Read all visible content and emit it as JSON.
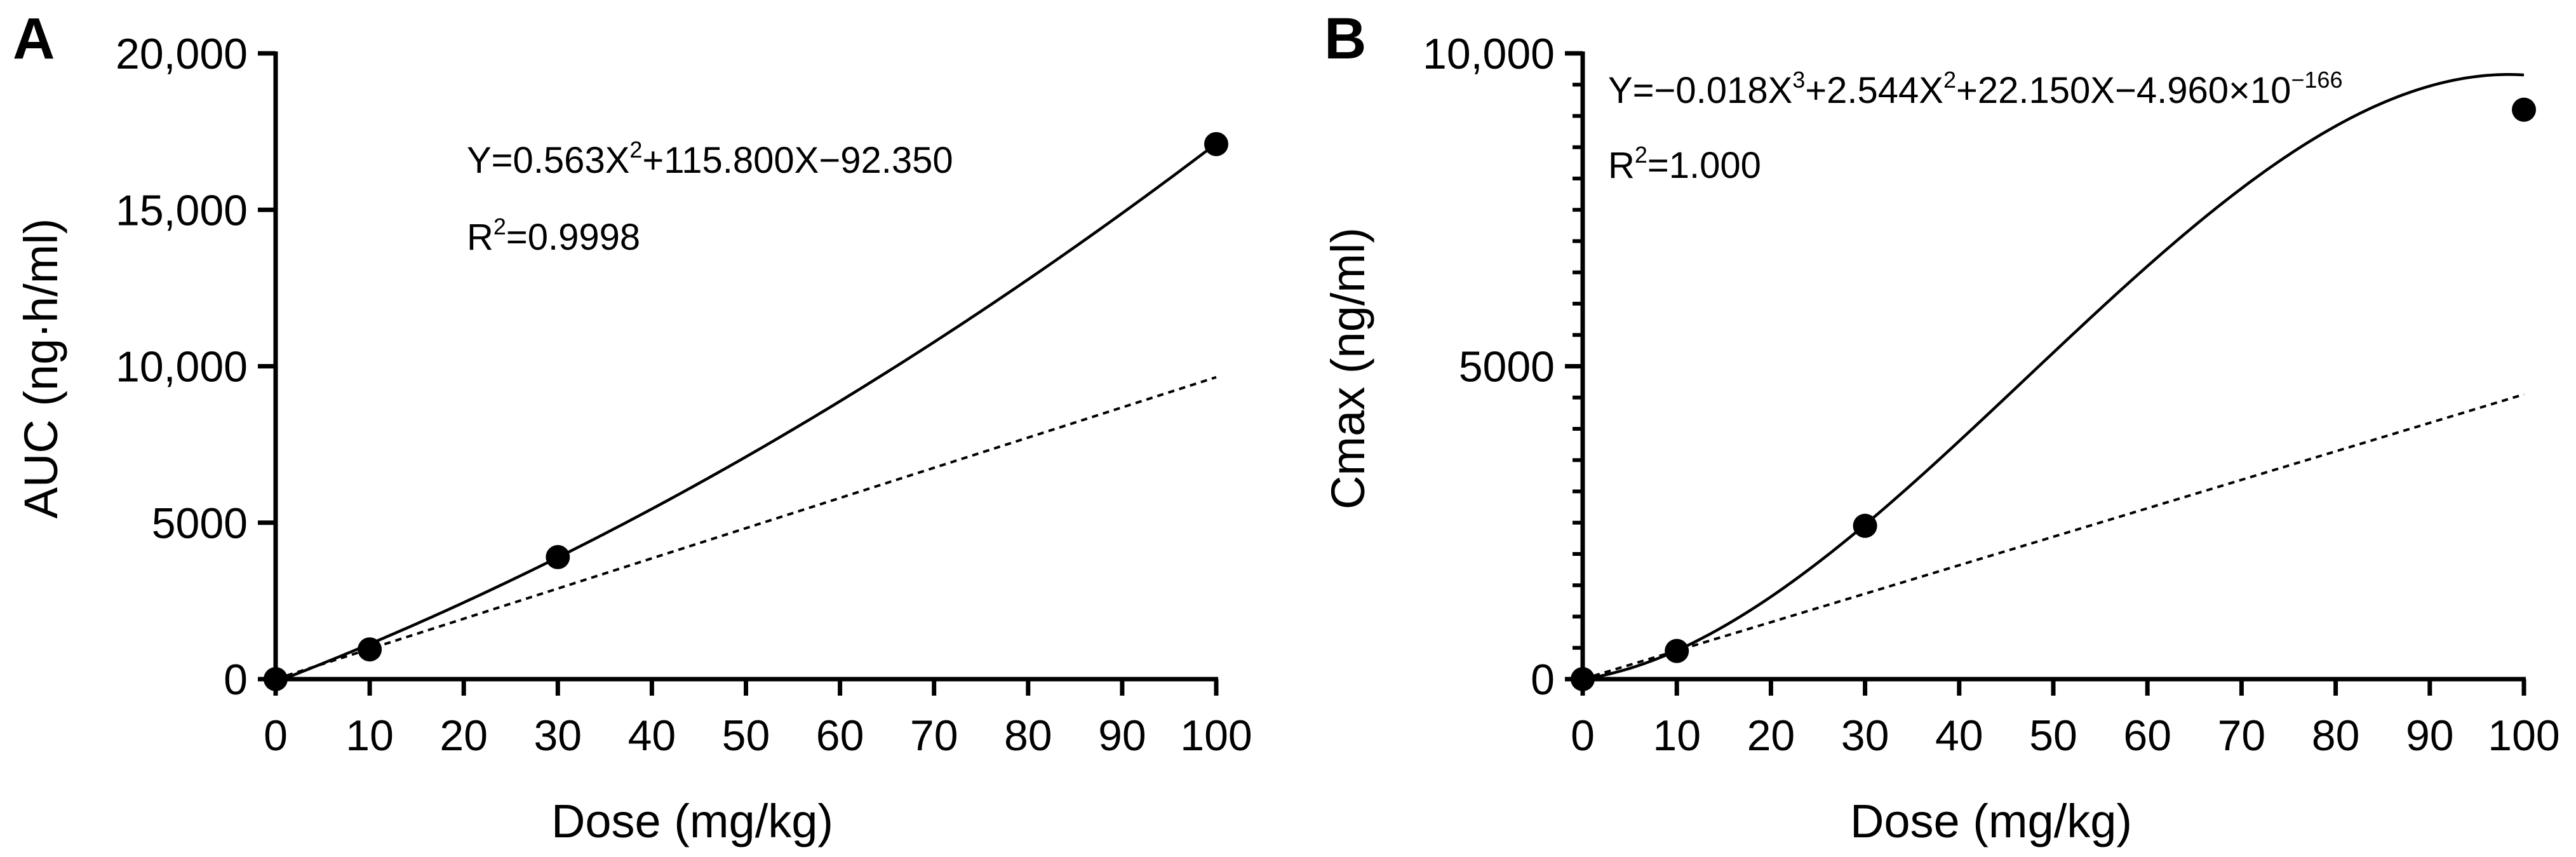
{
  "chart_data": [
    {
      "panel": "A",
      "type": "line",
      "xlabel": "Dose (mg/kg)",
      "ylabel": "AUC (ng·h/ml)",
      "xlim": [
        0,
        100
      ],
      "ylim": [
        0,
        20000
      ],
      "xticks": [
        0,
        10,
        20,
        30,
        40,
        50,
        60,
        70,
        80,
        90,
        100
      ],
      "xtick_labels": [
        "0",
        "10",
        "20",
        "30",
        "40",
        "50",
        "60",
        "70",
        "80",
        "90",
        "100"
      ],
      "yticks": [
        0,
        5000,
        10000,
        15000,
        20000
      ],
      "ytick_labels": [
        "0",
        "5000",
        "10,000",
        "15,000",
        "20,000"
      ],
      "y_minor_ticks": false,
      "grid": false,
      "points": [
        {
          "x": 0,
          "y": 0
        },
        {
          "x": 10,
          "y": 950
        },
        {
          "x": 30,
          "y": 3900
        },
        {
          "x": 100,
          "y": 17100
        }
      ],
      "fit": {
        "style": "solid",
        "equation": "Y=0.563X²+115.800X−92.350",
        "coefficients": {
          "a": 0.563,
          "b": 115.8,
          "c": -92.35
        }
      },
      "proportional_reference": {
        "style": "dashed",
        "x": [
          0,
          100
        ],
        "y": [
          0,
          9650
        ]
      },
      "annotation": {
        "equation_parts": [
          "Y=0.563X",
          "2",
          "+115.800X−92.350"
        ],
        "r2_parts": [
          "R",
          "2",
          "=0.9998"
        ]
      }
    },
    {
      "panel": "B",
      "type": "line",
      "xlabel": "Dose (mg/kg)",
      "ylabel": "Cmax (ng/ml)",
      "xlim": [
        0,
        100
      ],
      "ylim": [
        0,
        10000
      ],
      "xticks": [
        0,
        10,
        20,
        30,
        40,
        50,
        60,
        70,
        80,
        90,
        100
      ],
      "xtick_labels": [
        "0",
        "10",
        "20",
        "30",
        "40",
        "50",
        "60",
        "70",
        "80",
        "90",
        "100"
      ],
      "yticks": [
        0,
        5000,
        10000
      ],
      "ytick_labels": [
        "0",
        "5000",
        "10,000"
      ],
      "y_minor_ticks": true,
      "y_minor_step": 500,
      "grid": false,
      "points": [
        {
          "x": 0,
          "y": 0
        },
        {
          "x": 10,
          "y": 450
        },
        {
          "x": 30,
          "y": 2450
        },
        {
          "x": 100,
          "y": 9100
        }
      ],
      "fit": {
        "style": "solid",
        "equation": "Y=−0.018X³+2.544X²+22.150X−4.960×10⁻¹⁶⁶",
        "coefficients": {
          "a3": -0.018,
          "a2": 2.544,
          "a1": 22.15,
          "a0": 0
        }
      },
      "proportional_reference": {
        "style": "dashed",
        "x": [
          0,
          100
        ],
        "y": [
          0,
          4550
        ]
      },
      "annotation": {
        "equation_parts": [
          "Y=−0.018X",
          "3",
          "+2.544X",
          "2",
          "+22.150X−4.960×10",
          "−166"
        ],
        "r2_parts": [
          "R",
          "2",
          "=1.000"
        ]
      }
    }
  ]
}
